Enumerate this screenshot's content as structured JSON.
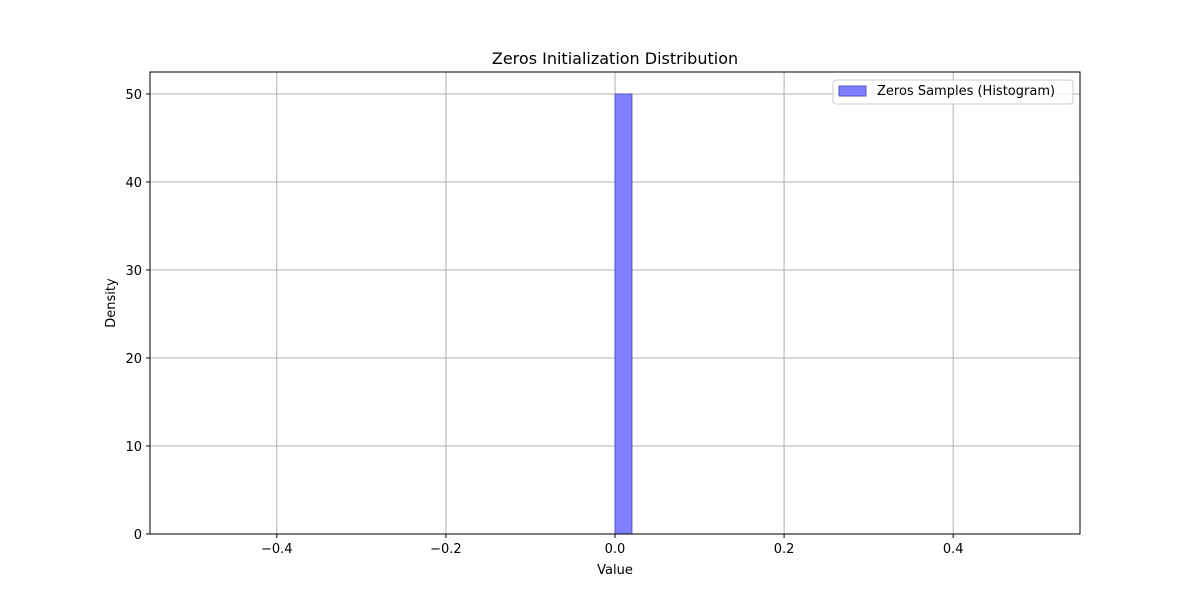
{
  "chart_data": {
    "type": "bar",
    "title": "Zeros Initialization Distribution",
    "xlabel": "Value",
    "ylabel": "Density",
    "xlim": [
      -0.55,
      0.55
    ],
    "ylim": [
      0,
      52.5
    ],
    "xticks": [
      -0.4,
      -0.2,
      0.0,
      0.2,
      0.4
    ],
    "xtick_labels": [
      "−0.4",
      "−0.2",
      "0.0",
      "0.2",
      "0.4"
    ],
    "yticks": [
      0,
      10,
      20,
      30,
      40,
      50
    ],
    "ytick_labels": [
      "0",
      "10",
      "20",
      "30",
      "40",
      "50"
    ],
    "grid": true,
    "legend_position": "top-right",
    "series": [
      {
        "name": "Zeros Samples (Histogram)",
        "bins": [
          {
            "x0": 0.0,
            "x1": 0.02,
            "value": 50
          }
        ],
        "fill_color": "#8080ff",
        "edge_color": "#5555bb"
      }
    ]
  }
}
